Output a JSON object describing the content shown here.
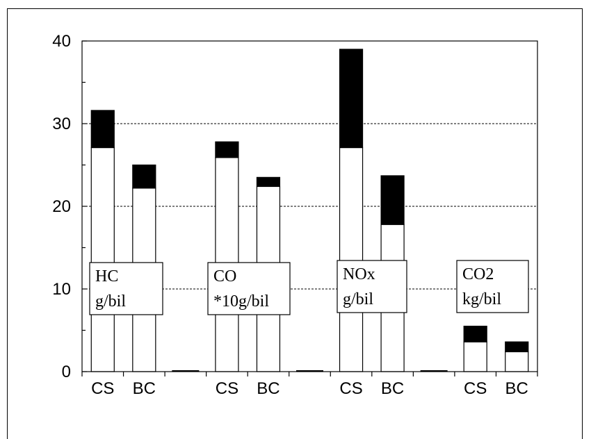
{
  "chart_data": {
    "type": "bar",
    "stacked": true,
    "ylim": [
      0,
      40
    ],
    "yticks": [
      "0",
      "10",
      "20",
      "30",
      "40"
    ],
    "grid": "horizontal dashed at 10, 20, 30",
    "categories": [
      "CS",
      "BC",
      "",
      "CS",
      "BC",
      "",
      "CS",
      "BC",
      "",
      "CS",
      "BC"
    ],
    "series": [
      {
        "color": "#ffffff",
        "values": [
          27.1,
          22.2,
          0,
          25.9,
          22.4,
          0,
          27.1,
          17.8,
          0,
          3.6,
          2.4
        ]
      },
      {
        "color": "#000000",
        "values": [
          4.5,
          2.8,
          0,
          1.9,
          1.1,
          0,
          11.9,
          5.9,
          0,
          1.9,
          1.2
        ]
      }
    ],
    "groups": [
      {
        "label_line1": "HC",
        "label_line2": "g/bil"
      },
      {
        "label_line1": "CO",
        "label_line2": "*10g/bil"
      },
      {
        "label_line1": "NOx",
        "label_line2": "g/bil"
      },
      {
        "label_line1": "CO2",
        "label_line2": "kg/bil"
      }
    ]
  }
}
